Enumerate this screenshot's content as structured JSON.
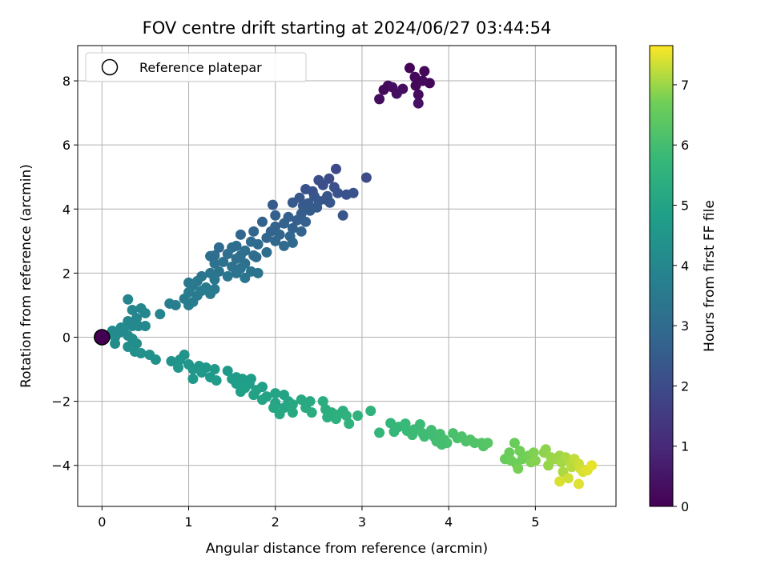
{
  "chart_data": {
    "type": "scatter",
    "title": "FOV centre drift starting at 2024/06/27 03:44:54",
    "xlabel": "Angular distance from reference (arcmin)",
    "ylabel": "Rotation from reference (arcmin)",
    "xlim": [
      -0.28,
      5.93
    ],
    "ylim": [
      -5.28,
      9.1
    ],
    "xticks": [
      0,
      1,
      2,
      3,
      4,
      5
    ],
    "yticks": [
      -4,
      -2,
      0,
      2,
      4,
      6,
      8
    ],
    "grid": true,
    "legend": {
      "placement": "top-left",
      "entries": [
        "Reference platepar"
      ]
    },
    "colorbar": {
      "label": "Hours from first FF file",
      "colormap": "viridis",
      "range": [
        0,
        7.65
      ],
      "ticks": [
        0,
        1,
        2,
        3,
        4,
        5,
        6,
        7
      ]
    },
    "reference_point": {
      "x": 0,
      "y": 0,
      "c": 0
    },
    "series": [
      {
        "columns": [
          "x",
          "y",
          "hours"
        ],
        "points": [
          [
            3.55,
            8.4,
            0.1
          ],
          [
            3.72,
            8.3,
            0.15
          ],
          [
            3.61,
            8.12,
            0.2
          ],
          [
            3.78,
            7.93,
            0.12
          ],
          [
            3.3,
            7.85,
            0.25
          ],
          [
            3.47,
            7.75,
            0.3
          ],
          [
            3.25,
            7.72,
            0.2
          ],
          [
            3.62,
            7.85,
            0.15
          ],
          [
            3.4,
            7.6,
            0.35
          ],
          [
            3.65,
            7.57,
            0.25
          ],
          [
            3.2,
            7.43,
            0.3
          ],
          [
            3.65,
            7.3,
            0.4
          ],
          [
            3.35,
            7.8,
            0.3
          ],
          [
            3.7,
            8.0,
            0.2
          ],
          [
            2.7,
            5.25,
            1.9
          ],
          [
            3.05,
            4.98,
            2.0
          ],
          [
            2.62,
            4.95,
            2.05
          ],
          [
            2.5,
            4.9,
            2.1
          ],
          [
            2.55,
            4.75,
            2.1
          ],
          [
            2.68,
            4.68,
            2.15
          ],
          [
            2.35,
            4.62,
            2.2
          ],
          [
            2.43,
            4.55,
            2.2
          ],
          [
            2.72,
            4.5,
            2.2
          ],
          [
            2.9,
            4.5,
            2.2
          ],
          [
            2.6,
            4.4,
            2.3
          ],
          [
            2.45,
            4.4,
            2.3
          ],
          [
            2.28,
            4.35,
            2.35
          ],
          [
            2.5,
            4.25,
            2.35
          ],
          [
            2.63,
            4.2,
            2.35
          ],
          [
            2.38,
            4.18,
            2.4
          ],
          [
            2.2,
            4.2,
            2.4
          ],
          [
            2.48,
            4.05,
            2.45
          ],
          [
            2.32,
            4.1,
            2.45
          ],
          [
            2.78,
            3.8,
            2.3
          ],
          [
            1.97,
            4.13,
            2.5
          ],
          [
            2.58,
            4.3,
            2.3
          ],
          [
            2.82,
            4.45,
            2.2
          ],
          [
            2.4,
            3.95,
            2.5
          ],
          [
            2.3,
            3.85,
            2.55
          ],
          [
            2.15,
            3.75,
            2.6
          ],
          [
            2.0,
            3.8,
            2.6
          ],
          [
            2.25,
            3.65,
            2.6
          ],
          [
            2.35,
            3.6,
            2.65
          ],
          [
            2.1,
            3.55,
            2.7
          ],
          [
            1.85,
            3.6,
            2.7
          ],
          [
            2.0,
            3.45,
            2.7
          ],
          [
            2.2,
            3.4,
            2.7
          ],
          [
            1.95,
            3.3,
            2.75
          ],
          [
            1.75,
            3.3,
            2.8
          ],
          [
            2.3,
            3.3,
            2.75
          ],
          [
            2.05,
            3.2,
            2.8
          ],
          [
            2.17,
            3.15,
            2.85
          ],
          [
            1.6,
            3.2,
            2.85
          ],
          [
            1.9,
            3.1,
            2.85
          ],
          [
            2.0,
            3.0,
            2.9
          ],
          [
            2.2,
            2.95,
            2.9
          ],
          [
            2.1,
            2.85,
            2.95
          ],
          [
            1.8,
            2.9,
            2.95
          ],
          [
            1.72,
            2.98,
            3.0
          ],
          [
            1.55,
            2.85,
            3.0
          ],
          [
            1.5,
            2.8,
            3.05
          ],
          [
            1.9,
            2.65,
            3.05
          ],
          [
            1.65,
            2.7,
            3.1
          ],
          [
            1.6,
            2.55,
            3.1
          ],
          [
            1.45,
            2.6,
            3.15
          ],
          [
            1.75,
            2.55,
            3.1
          ],
          [
            1.3,
            2.55,
            3.1
          ],
          [
            1.55,
            2.45,
            3.15
          ],
          [
            1.4,
            2.35,
            3.2
          ],
          [
            1.65,
            2.3,
            3.2
          ],
          [
            1.3,
            2.3,
            3.25
          ],
          [
            1.5,
            2.2,
            3.25
          ],
          [
            1.6,
            2.15,
            3.25
          ],
          [
            1.35,
            2.05,
            3.3
          ],
          [
            1.25,
            2.0,
            3.35
          ],
          [
            1.55,
            2.0,
            3.3
          ],
          [
            1.72,
            2.05,
            3.3
          ],
          [
            1.45,
            1.9,
            3.35
          ],
          [
            1.65,
            1.85,
            3.35
          ],
          [
            1.8,
            2.0,
            3.3
          ],
          [
            1.15,
            1.9,
            3.4
          ],
          [
            1.3,
            1.8,
            3.4
          ],
          [
            1.1,
            1.75,
            3.45
          ],
          [
            1.0,
            1.7,
            3.45
          ],
          [
            1.05,
            1.6,
            3.5
          ],
          [
            1.2,
            1.55,
            3.5
          ],
          [
            1.15,
            1.45,
            3.55
          ],
          [
            1.3,
            1.5,
            3.5
          ],
          [
            1.0,
            1.4,
            3.55
          ],
          [
            1.1,
            1.3,
            3.6
          ],
          [
            1.25,
            1.35,
            3.55
          ],
          [
            0.95,
            1.2,
            3.6
          ],
          [
            1.05,
            1.1,
            3.6
          ],
          [
            0.85,
            1.0,
            3.65
          ],
          [
            1.0,
            1.0,
            3.65
          ],
          [
            0.78,
            1.05,
            3.65
          ],
          [
            1.78,
            2.5,
            3.0
          ],
          [
            1.35,
            2.8,
            2.95
          ],
          [
            1.25,
            2.53,
            3.1
          ],
          [
            0.3,
            1.18,
            3.9
          ],
          [
            0.35,
            0.85,
            3.95
          ],
          [
            0.45,
            0.9,
            3.95
          ],
          [
            0.5,
            0.75,
            3.95
          ],
          [
            0.4,
            0.6,
            4.0
          ],
          [
            0.67,
            0.72,
            3.9
          ],
          [
            0.3,
            0.5,
            4.0
          ],
          [
            0.35,
            0.35,
            4.05
          ],
          [
            0.42,
            0.35,
            4.05
          ],
          [
            0.5,
            0.35,
            4.05
          ],
          [
            0.25,
            0.25,
            4.1
          ],
          [
            0.2,
            0.15,
            4.1
          ],
          [
            0.3,
            0.05,
            4.15
          ],
          [
            0.15,
            0.0,
            4.15
          ],
          [
            0.35,
            -0.05,
            4.2
          ],
          [
            0.4,
            -0.2,
            4.2
          ],
          [
            0.3,
            -0.3,
            4.25
          ],
          [
            0.15,
            -0.2,
            4.2
          ],
          [
            0.38,
            -0.45,
            4.3
          ],
          [
            0.45,
            -0.5,
            4.3
          ],
          [
            0.22,
            0.3,
            4.1
          ],
          [
            0.12,
            0.2,
            4.1
          ],
          [
            0.55,
            -0.55,
            4.35
          ],
          [
            0.62,
            -0.7,
            4.35
          ],
          [
            0.8,
            -0.75,
            4.4
          ],
          [
            0.95,
            -0.55,
            4.45
          ],
          [
            0.9,
            -0.7,
            4.45
          ],
          [
            1.0,
            -0.85,
            4.5
          ],
          [
            0.88,
            -0.95,
            4.5
          ],
          [
            1.05,
            -1.0,
            4.55
          ],
          [
            1.12,
            -0.9,
            4.55
          ],
          [
            1.2,
            -0.95,
            4.55
          ],
          [
            1.15,
            -1.1,
            4.6
          ],
          [
            1.05,
            -1.3,
            4.6
          ],
          [
            1.25,
            -1.25,
            4.65
          ],
          [
            1.3,
            -1.0,
            4.6
          ],
          [
            1.45,
            -1.05,
            4.6
          ],
          [
            1.32,
            -1.35,
            4.7
          ],
          [
            1.5,
            -1.3,
            4.7
          ],
          [
            1.55,
            -1.25,
            4.7
          ],
          [
            1.62,
            -1.3,
            4.75
          ],
          [
            1.72,
            -1.3,
            4.75
          ],
          [
            1.55,
            -1.45,
            4.8
          ],
          [
            1.7,
            -1.45,
            4.8
          ],
          [
            1.65,
            -1.58,
            4.85
          ],
          [
            1.6,
            -1.7,
            4.85
          ],
          [
            1.85,
            -1.55,
            4.85
          ],
          [
            1.78,
            -1.65,
            4.9
          ],
          [
            1.75,
            -1.8,
            4.9
          ],
          [
            1.9,
            -1.85,
            4.95
          ],
          [
            1.85,
            -1.95,
            5.0
          ],
          [
            2.0,
            -1.75,
            5.0
          ],
          [
            2.1,
            -1.8,
            5.0
          ],
          [
            2.0,
            -2.05,
            5.05
          ],
          [
            2.15,
            -2.0,
            5.05
          ],
          [
            1.98,
            -2.2,
            5.1
          ],
          [
            2.1,
            -2.2,
            5.1
          ],
          [
            2.2,
            -2.1,
            5.15
          ],
          [
            2.05,
            -2.4,
            5.15
          ],
          [
            2.2,
            -2.35,
            5.2
          ],
          [
            2.35,
            -2.2,
            5.25
          ],
          [
            2.4,
            -2.0,
            5.2
          ],
          [
            2.3,
            -1.95,
            5.2
          ],
          [
            2.42,
            -2.35,
            5.3
          ],
          [
            2.55,
            -2.0,
            5.35
          ],
          [
            2.58,
            -2.25,
            5.35
          ],
          [
            2.6,
            -2.5,
            5.4
          ],
          [
            2.65,
            -2.35,
            5.4
          ],
          [
            2.7,
            -2.55,
            5.45
          ],
          [
            2.78,
            -2.3,
            5.45
          ],
          [
            2.82,
            -2.45,
            5.5
          ],
          [
            2.85,
            -2.7,
            5.5
          ],
          [
            2.95,
            -2.45,
            5.5
          ],
          [
            2.72,
            -2.42,
            5.45
          ],
          [
            3.1,
            -2.3,
            5.55
          ],
          [
            3.2,
            -2.98,
            5.7
          ],
          [
            3.33,
            -2.68,
            5.7
          ],
          [
            3.37,
            -2.95,
            5.75
          ],
          [
            3.42,
            -2.8,
            5.75
          ],
          [
            3.5,
            -2.7,
            5.8
          ],
          [
            3.52,
            -2.92,
            5.8
          ],
          [
            3.58,
            -3.05,
            5.85
          ],
          [
            3.6,
            -2.88,
            5.85
          ],
          [
            3.67,
            -2.72,
            5.85
          ],
          [
            3.7,
            -3.0,
            5.9
          ],
          [
            3.72,
            -3.1,
            5.9
          ],
          [
            3.8,
            -2.9,
            5.95
          ],
          [
            3.83,
            -3.1,
            5.95
          ],
          [
            3.86,
            -3.25,
            6.0
          ],
          [
            3.9,
            -3.02,
            6.0
          ],
          [
            3.95,
            -3.2,
            6.05
          ],
          [
            3.98,
            -3.3,
            6.05
          ],
          [
            4.05,
            -3.0,
            6.1
          ],
          [
            4.1,
            -3.15,
            6.1
          ],
          [
            4.15,
            -3.1,
            6.15
          ],
          [
            4.2,
            -3.25,
            6.15
          ],
          [
            4.25,
            -3.2,
            6.2
          ],
          [
            4.3,
            -3.3,
            6.2
          ],
          [
            4.38,
            -3.3,
            6.25
          ],
          [
            4.4,
            -3.4,
            6.25
          ],
          [
            4.45,
            -3.3,
            6.3
          ],
          [
            3.92,
            -3.35,
            6.0
          ],
          [
            4.65,
            -3.8,
            6.6
          ],
          [
            4.7,
            -3.6,
            6.6
          ],
          [
            4.72,
            -3.85,
            6.65
          ],
          [
            4.78,
            -3.95,
            6.65
          ],
          [
            4.76,
            -3.3,
            6.6
          ],
          [
            4.82,
            -3.55,
            6.7
          ],
          [
            4.85,
            -3.8,
            6.7
          ],
          [
            4.8,
            -4.1,
            6.75
          ],
          [
            4.92,
            -3.7,
            6.75
          ],
          [
            4.95,
            -3.9,
            6.8
          ],
          [
            4.98,
            -3.6,
            6.8
          ],
          [
            5.0,
            -3.85,
            6.85
          ],
          [
            5.1,
            -3.6,
            6.9
          ],
          [
            5.12,
            -3.5,
            6.9
          ],
          [
            5.18,
            -3.75,
            6.95
          ],
          [
            5.15,
            -4.0,
            6.95
          ],
          [
            5.22,
            -3.8,
            7.0
          ],
          [
            5.28,
            -3.7,
            7.0
          ],
          [
            5.3,
            -3.9,
            7.05
          ],
          [
            5.32,
            -4.2,
            7.1
          ],
          [
            5.35,
            -3.75,
            7.1
          ],
          [
            5.4,
            -3.9,
            7.15
          ],
          [
            5.42,
            -4.05,
            7.2
          ],
          [
            5.45,
            -3.8,
            7.25
          ],
          [
            5.5,
            -3.95,
            7.3
          ],
          [
            5.52,
            -4.1,
            7.35
          ],
          [
            5.55,
            -4.2,
            7.4
          ],
          [
            5.6,
            -4.15,
            7.45
          ],
          [
            5.65,
            -4.0,
            7.5
          ],
          [
            5.28,
            -4.5,
            7.4
          ],
          [
            5.5,
            -4.58,
            7.45
          ],
          [
            5.38,
            -4.4,
            7.35
          ]
        ]
      }
    ]
  }
}
